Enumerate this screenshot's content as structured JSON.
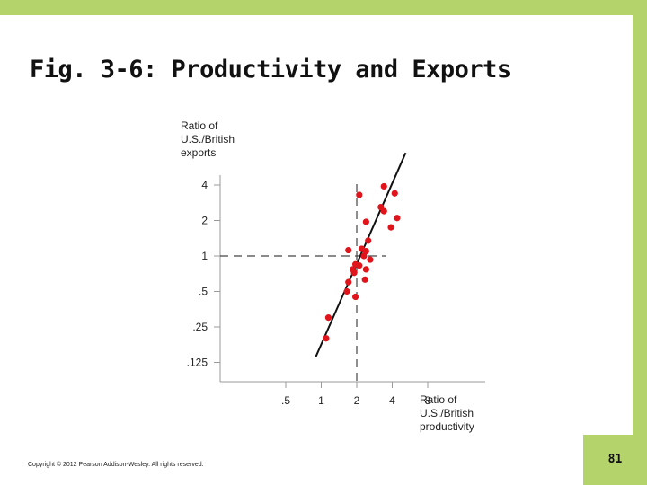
{
  "slide": {
    "title": "Fig. 3-6: Productivity and Exports",
    "copyright": "Copyright © 2012 Pearson Addison-Wesley. All rights reserved.",
    "page_number": "81",
    "accent_color": "#b5d36b"
  },
  "chart_data": {
    "type": "scatter",
    "title": "",
    "ylabel_lines": [
      "Ratio of",
      "U.S./British",
      "exports"
    ],
    "xlabel_lines": [
      "Ratio of",
      "U.S./British",
      "productivity"
    ],
    "x_scale": "log2",
    "y_scale": "log2",
    "x_ticks": [
      {
        "value": 0.5,
        "label": ".5"
      },
      {
        "value": 1,
        "label": "1"
      },
      {
        "value": 2,
        "label": "2"
      },
      {
        "value": 4,
        "label": "4"
      },
      {
        "value": 8,
        "label": "8"
      }
    ],
    "y_ticks": [
      {
        "value": 0.125,
        "label": ".125"
      },
      {
        "value": 0.25,
        "label": ".25"
      },
      {
        "value": 0.5,
        "label": ".5"
      },
      {
        "value": 1,
        "label": "1"
      },
      {
        "value": 2,
        "label": "2"
      },
      {
        "value": 4,
        "label": "4"
      }
    ],
    "reference_lines": {
      "x": 2,
      "y": 1
    },
    "fit_line": {
      "x": [
        0.9,
        5.2
      ],
      "y": [
        0.14,
        7.5
      ]
    },
    "point_color": "#e0141b",
    "points": [
      {
        "x": 2.1,
        "y": 3.3
      },
      {
        "x": 3.4,
        "y": 3.9
      },
      {
        "x": 4.2,
        "y": 3.4
      },
      {
        "x": 3.2,
        "y": 2.6
      },
      {
        "x": 3.4,
        "y": 2.4
      },
      {
        "x": 4.4,
        "y": 2.1
      },
      {
        "x": 2.4,
        "y": 1.95
      },
      {
        "x": 3.9,
        "y": 1.75
      },
      {
        "x": 2.5,
        "y": 1.35
      },
      {
        "x": 1.7,
        "y": 1.12
      },
      {
        "x": 2.2,
        "y": 1.15
      },
      {
        "x": 2.4,
        "y": 1.1
      },
      {
        "x": 2.3,
        "y": 1.0
      },
      {
        "x": 2.6,
        "y": 0.93
      },
      {
        "x": 1.95,
        "y": 0.85
      },
      {
        "x": 2.1,
        "y": 0.83
      },
      {
        "x": 1.85,
        "y": 0.77
      },
      {
        "x": 2.4,
        "y": 0.77
      },
      {
        "x": 1.9,
        "y": 0.72
      },
      {
        "x": 2.35,
        "y": 0.63
      },
      {
        "x": 1.7,
        "y": 0.6
      },
      {
        "x": 1.65,
        "y": 0.5
      },
      {
        "x": 1.95,
        "y": 0.45
      },
      {
        "x": 1.15,
        "y": 0.3
      },
      {
        "x": 1.1,
        "y": 0.2
      }
    ]
  }
}
